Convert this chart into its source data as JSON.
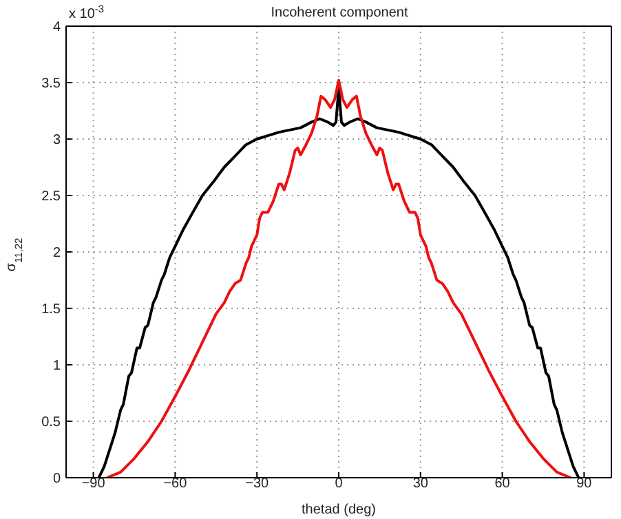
{
  "chart_data": {
    "type": "line",
    "title": "Incoherent component",
    "xlabel": "thetad (deg)",
    "ylabel": "σ$_{11,22}$",
    "annotations": [
      "x 10$^{-3}$"
    ],
    "xlim": [
      -100,
      100
    ],
    "xticks": [
      {
        "value": -90,
        "label": "−90"
      },
      {
        "value": -60,
        "label": "−60"
      },
      {
        "value": -30,
        "label": "−30"
      },
      0,
      30,
      60,
      90
    ],
    "ylim": [
      0,
      4
    ],
    "yticks": [
      0,
      0.5,
      1,
      1.5,
      2,
      2.5,
      3,
      3.5,
      4
    ],
    "grid": true,
    "marker": "none",
    "line_style": "solid",
    "series": [
      {
        "color": "#000000",
        "x": [
          -88,
          -86,
          -84,
          -82,
          -80,
          -79,
          -77,
          -76,
          -74,
          -73,
          -71,
          -70,
          -68,
          -67,
          -65,
          -64,
          -62,
          -60,
          -57,
          -54,
          -50,
          -46,
          -42,
          -38,
          -34,
          -30,
          -26,
          -22,
          -18,
          -14,
          -10,
          -7,
          -4,
          -2,
          -1,
          -0.5,
          0,
          0.5,
          1,
          2,
          4,
          7,
          10,
          14,
          18,
          22,
          26,
          30,
          34,
          38,
          42,
          46,
          50,
          54,
          57,
          60,
          62,
          64,
          65,
          67,
          68,
          70,
          71,
          73,
          74,
          76,
          77,
          79,
          80,
          82,
          84,
          86,
          88
        ],
        "values": [
          0,
          0.1,
          0.25,
          0.4,
          0.6,
          0.65,
          0.9,
          0.93,
          1.15,
          1.15,
          1.33,
          1.35,
          1.55,
          1.6,
          1.75,
          1.8,
          1.95,
          2.05,
          2.2,
          2.33,
          2.5,
          2.62,
          2.75,
          2.85,
          2.95,
          3.0,
          3.03,
          3.06,
          3.08,
          3.1,
          3.15,
          3.18,
          3.15,
          3.12,
          3.15,
          3.3,
          3.45,
          3.3,
          3.15,
          3.12,
          3.15,
          3.18,
          3.15,
          3.1,
          3.08,
          3.06,
          3.03,
          3.0,
          2.95,
          2.85,
          2.75,
          2.62,
          2.5,
          2.33,
          2.2,
          2.05,
          1.95,
          1.8,
          1.75,
          1.6,
          1.55,
          1.35,
          1.33,
          1.15,
          1.15,
          0.93,
          0.9,
          0.65,
          0.6,
          0.4,
          0.25,
          0.1,
          0
        ]
      },
      {
        "color": "#ee1111",
        "x": [
          -85,
          -80,
          -75,
          -70,
          -65,
          -60,
          -55,
          -50,
          -45,
          -42,
          -40,
          -38,
          -36,
          -34,
          -33,
          -32,
          -30,
          -29,
          -28,
          -26,
          -24,
          -22,
          -21,
          -20,
          -18,
          -16,
          -15,
          -14,
          -12,
          -10,
          -8,
          -6.5,
          -5,
          -3,
          -1.5,
          0,
          1.5,
          3,
          5,
          6.5,
          8,
          10,
          12,
          14,
          15,
          16,
          18,
          20,
          21,
          22,
          24,
          26,
          28,
          29,
          30,
          32,
          33,
          34,
          36,
          38,
          40,
          42,
          45,
          50,
          55,
          60,
          65,
          70,
          75,
          80,
          85
        ],
        "values": [
          0,
          0.05,
          0.17,
          0.32,
          0.5,
          0.72,
          0.95,
          1.2,
          1.45,
          1.55,
          1.65,
          1.72,
          1.75,
          1.9,
          1.95,
          2.05,
          2.15,
          2.3,
          2.35,
          2.35,
          2.45,
          2.6,
          2.6,
          2.55,
          2.7,
          2.9,
          2.92,
          2.86,
          2.95,
          3.05,
          3.2,
          3.38,
          3.35,
          3.28,
          3.35,
          3.52,
          3.35,
          3.28,
          3.35,
          3.38,
          3.2,
          3.05,
          2.95,
          2.86,
          2.92,
          2.9,
          2.7,
          2.55,
          2.6,
          2.6,
          2.45,
          2.35,
          2.35,
          2.3,
          2.15,
          2.05,
          1.95,
          1.9,
          1.75,
          1.72,
          1.65,
          1.55,
          1.45,
          1.2,
          0.95,
          0.72,
          0.5,
          0.32,
          0.17,
          0.05,
          0
        ]
      }
    ]
  }
}
